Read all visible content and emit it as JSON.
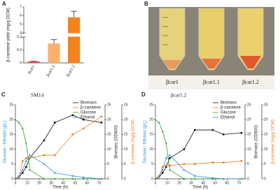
{
  "chart_data": [
    {
      "type": "bar",
      "panel_label": "A",
      "y_label": "β-carotene yield (mg/g DCW)",
      "categories": [
        "βcar1",
        "βcar1.1",
        "βcar1.2"
      ],
      "values": [
        0.02,
        0.3,
        5.8
      ],
      "errors": [
        0.005,
        0.06,
        0.7
      ],
      "colors": [
        "#e0473c",
        "#f9b26c",
        "#f58220"
      ],
      "ylim_segments": [
        [
          0,
          0.4
        ],
        [
          4,
          7
        ]
      ],
      "yticks": [
        0,
        0.2,
        0.4,
        4,
        5,
        6,
        7
      ]
    },
    {
      "type": "line",
      "panel_label": "C",
      "title": "SM14",
      "x_label": "Time (h)",
      "y_label": "Glucose / Ethanol (g/L)",
      "y2_label": "Biomass (OD600)",
      "y3_label": "β-carotene (mg/g DCW)",
      "x": [
        0,
        3,
        6,
        9,
        12,
        24,
        33,
        48,
        57,
        72
      ],
      "xlim": [
        0,
        75
      ],
      "xticks": [
        0,
        10,
        20,
        30,
        40,
        50,
        60,
        70
      ],
      "ylim": [
        0,
        25
      ],
      "yticks": [
        0,
        5,
        10,
        15,
        20,
        25
      ],
      "y2lim": [
        0,
        25
      ],
      "y2ticks": [
        0,
        5,
        10,
        15,
        20,
        25
      ],
      "y3lim": [
        0,
        25
      ],
      "y3ticks": [
        0,
        5,
        10,
        15,
        20,
        25
      ],
      "series": [
        {
          "name": "Biomass",
          "color": "#111111",
          "axis": "y2",
          "marker": "circle",
          "values": [
            0,
            0.5,
            2,
            4,
            7,
            13,
            19,
            21.5,
            20,
            19
          ]
        },
        {
          "name": "β-carotene",
          "color": "#f07f1e",
          "axis": "y3",
          "marker": "square",
          "values": [
            0,
            0.5,
            6,
            7,
            7,
            8,
            8,
            15,
            17,
            21
          ]
        },
        {
          "name": "Glucose",
          "color": "#2ca02c",
          "axis": "y",
          "marker": "triangle",
          "values": [
            20,
            19,
            17,
            12,
            3,
            0,
            0,
            0,
            0,
            0
          ]
        },
        {
          "name": "Ethanol",
          "color": "#2a8fd6",
          "axis": "y",
          "marker": "triangle",
          "values": [
            0,
            1,
            3,
            6,
            8,
            5,
            2,
            1,
            0.5,
            0
          ]
        }
      ]
    },
    {
      "type": "line",
      "panel_label": "D",
      "title": "βcar1.2",
      "x_label": "Time (h)",
      "y_label": "Glucose / Ethanol (g/L)",
      "y2_label": "Biomass (OD600)",
      "y3_label": "β-carotene (mg/g DCW)",
      "x": [
        0,
        3,
        6,
        9,
        12,
        24,
        33,
        48,
        57,
        72
      ],
      "xlim": [
        0,
        75
      ],
      "xticks": [
        0,
        10,
        20,
        30,
        40,
        50,
        60,
        70
      ],
      "ylim": [
        0,
        25
      ],
      "yticks": [
        0,
        5,
        10,
        15,
        20,
        25
      ],
      "y2lim": [
        0,
        25
      ],
      "y2ticks": [
        0,
        5,
        10,
        15,
        20,
        25
      ],
      "y3lim": [
        0,
        25
      ],
      "y3ticks": [
        0,
        5,
        10,
        15,
        20,
        25
      ],
      "series": [
        {
          "name": "Biomass",
          "color": "#111111",
          "axis": "y2",
          "marker": "circle",
          "values": [
            0,
            0.5,
            2,
            4,
            7,
            10,
            16.5,
            16.5,
            15,
            15.5
          ]
        },
        {
          "name": "β-carotene",
          "color": "#f07f1e",
          "axis": "y3",
          "marker": "square",
          "values": [
            0,
            0.5,
            4,
            4.5,
            4.5,
            5,
            5,
            5.5,
            5.5,
            6
          ]
        },
        {
          "name": "Glucose",
          "color": "#2ca02c",
          "axis": "y",
          "marker": "triangle",
          "values": [
            20,
            19,
            16,
            12,
            3,
            0,
            0,
            0,
            0,
            0
          ]
        },
        {
          "name": "Ethanol",
          "color": "#2a8fd6",
          "axis": "y",
          "marker": "triangle",
          "values": [
            0,
            1,
            3,
            7,
            8,
            3,
            1,
            0.3,
            0,
            0
          ]
        }
      ]
    }
  ],
  "photo": {
    "panel_label": "B",
    "captions": [
      "βcar1",
      "βcar1.1",
      "βcar1.2"
    ]
  }
}
